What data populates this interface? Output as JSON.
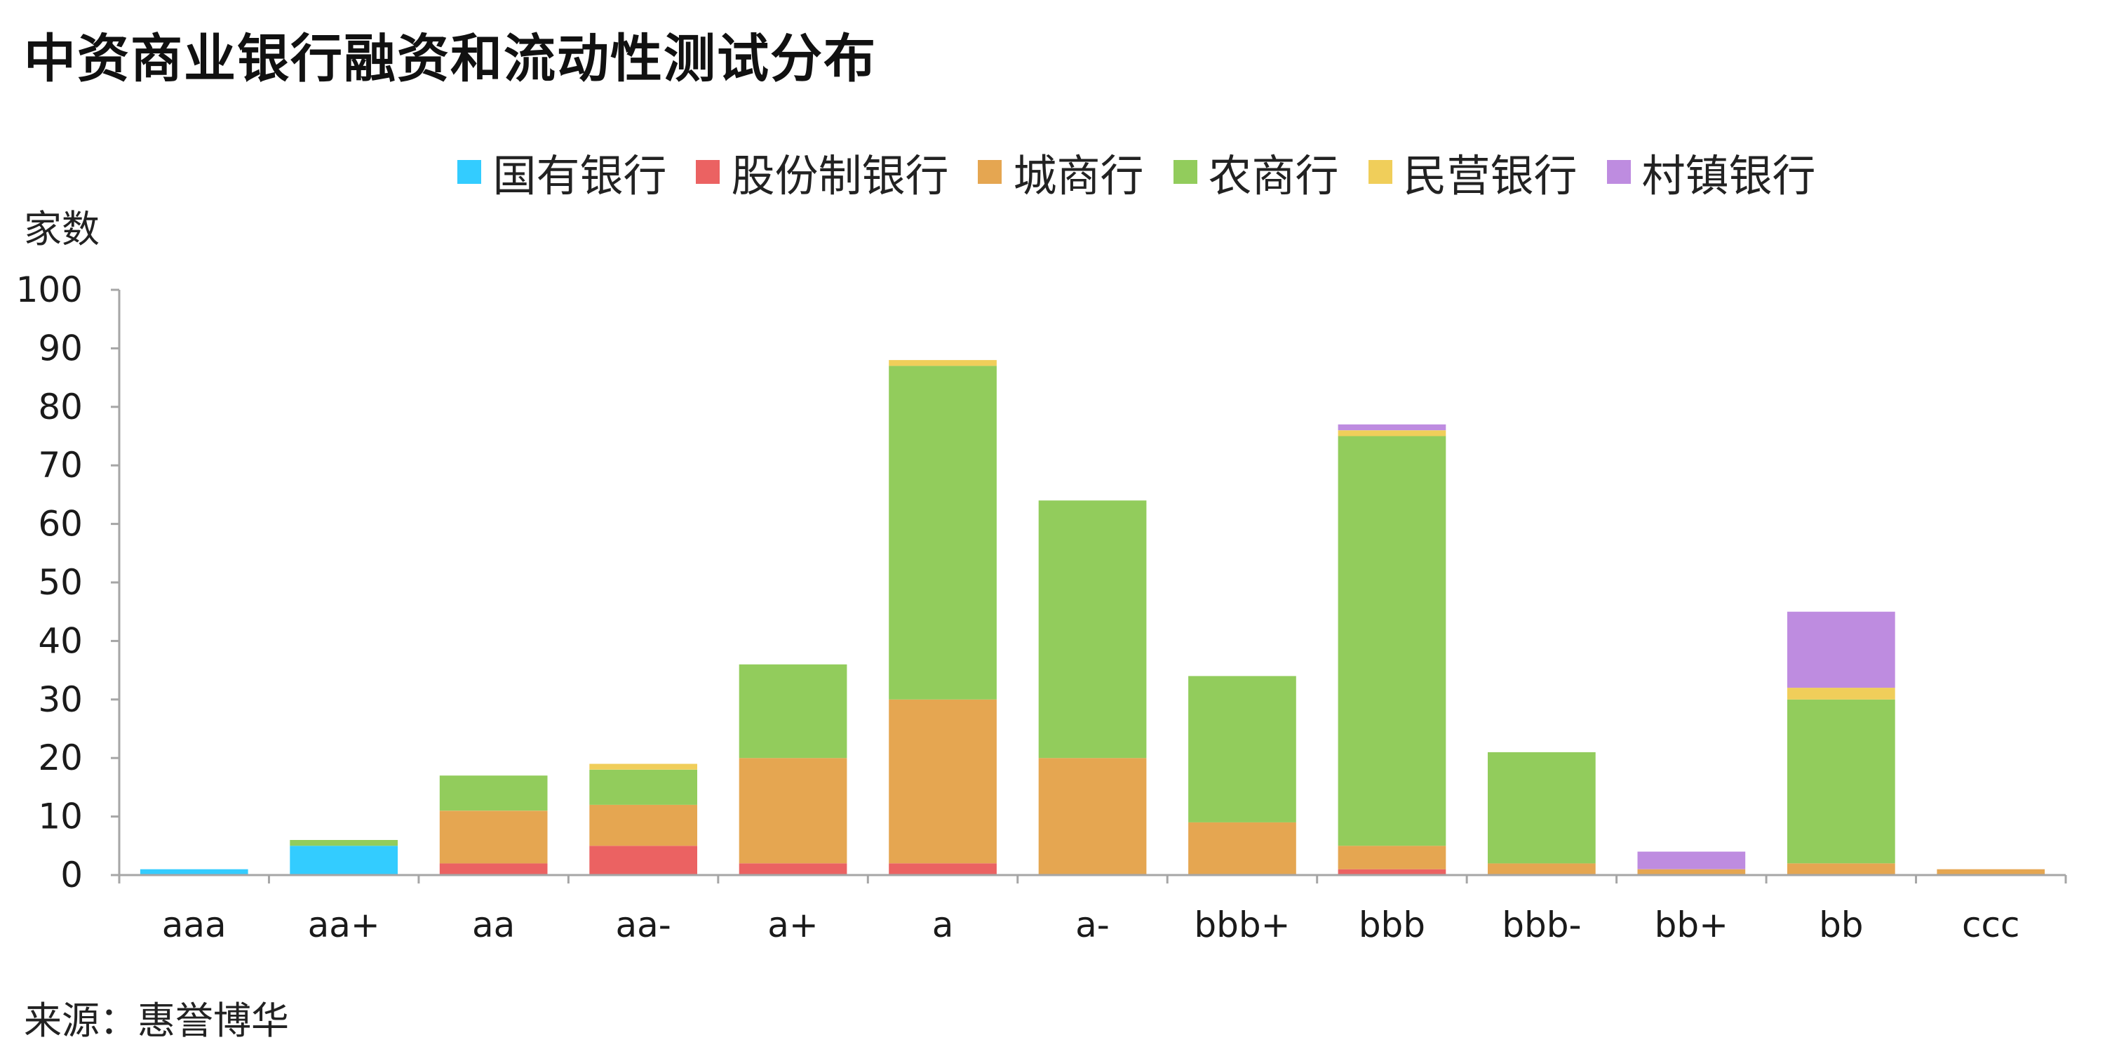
{
  "title": "中资商业银行融资和流动性测试分布",
  "ylabel": "家数",
  "source": "来源：惠誉博华",
  "legend": [
    {
      "name": "国有银行",
      "color": "#33CCFF",
      "icon": "square-swatch"
    },
    {
      "name": "股份制银行",
      "color": "#EB6262",
      "icon": "square-swatch"
    },
    {
      "name": "城商行",
      "color": "#E5A651",
      "icon": "square-swatch"
    },
    {
      "name": "农商行",
      "color": "#92CC5C",
      "icon": "square-swatch"
    },
    {
      "name": "民营银行",
      "color": "#F0CE5A",
      "icon": "square-swatch"
    },
    {
      "name": "村镇银行",
      "color": "#BE8CE0",
      "icon": "square-swatch"
    }
  ],
  "chart_data": {
    "type": "bar",
    "stacked": true,
    "categories": [
      "aaa",
      "aa+",
      "aa",
      "aa-",
      "a+",
      "a",
      "a-",
      "bbb+",
      "bbb",
      "bbb-",
      "bb+",
      "bb",
      "ccc"
    ],
    "series": [
      {
        "name": "国有银行",
        "color": "#33CCFF",
        "values": [
          1,
          5,
          0,
          0,
          0,
          0,
          0,
          0,
          0,
          0,
          0,
          0,
          0
        ]
      },
      {
        "name": "股份制银行",
        "color": "#EB6262",
        "values": [
          0,
          0,
          2,
          5,
          2,
          2,
          0,
          0,
          1,
          0,
          0,
          0,
          0
        ]
      },
      {
        "name": "城商行",
        "color": "#E5A651",
        "values": [
          0,
          0,
          9,
          7,
          18,
          28,
          20,
          9,
          4,
          2,
          1,
          2,
          1
        ]
      },
      {
        "name": "农商行",
        "color": "#92CC5C",
        "values": [
          0,
          1,
          6,
          6,
          16,
          57,
          44,
          25,
          70,
          19,
          0,
          28,
          0
        ]
      },
      {
        "name": "民营银行",
        "color": "#F0CE5A",
        "values": [
          0,
          0,
          0,
          1,
          0,
          1,
          0,
          0,
          1,
          0,
          0,
          2,
          0
        ]
      },
      {
        "name": "村镇银行",
        "color": "#BE8CE0",
        "values": [
          0,
          0,
          0,
          0,
          0,
          0,
          0,
          0,
          1,
          0,
          3,
          13,
          0
        ]
      }
    ],
    "yticks": [
      0,
      10,
      20,
      30,
      40,
      50,
      60,
      70,
      80,
      90,
      100
    ],
    "ylim": [
      0,
      100
    ],
    "grid": false,
    "legend_position": "top"
  }
}
